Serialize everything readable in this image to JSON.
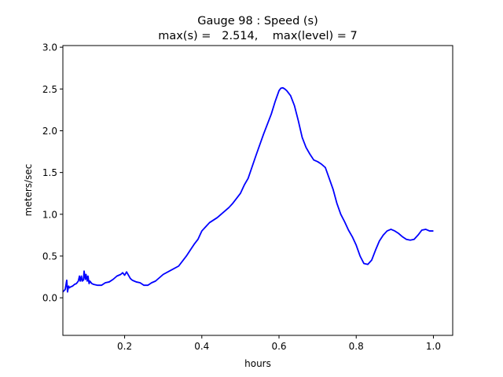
{
  "chart_data": {
    "type": "line",
    "title": "Gauge 98 : Speed (s)",
    "subtitle": "max(s) =   2.514,    max(level) = 7",
    "xlabel": "hours",
    "ylabel": "meters/sec",
    "xlim": [
      0.04,
      1.05
    ],
    "ylim": [
      -0.45,
      3.02
    ],
    "xticks": [
      0.2,
      0.4,
      0.6,
      0.8,
      1.0
    ],
    "xtick_labels": [
      "0.2",
      "0.4",
      "0.6",
      "0.8",
      "1.0"
    ],
    "yticks": [
      0.0,
      0.5,
      1.0,
      1.5,
      2.0,
      2.5,
      3.0
    ],
    "ytick_labels": [
      "0.0",
      "0.5",
      "1.0",
      "1.5",
      "2.0",
      "2.5",
      "3.0"
    ],
    "grid": false,
    "series": [
      {
        "color": "#0000ff",
        "x": [
          0.04,
          0.046,
          0.05,
          0.052,
          0.055,
          0.057,
          0.06,
          0.065,
          0.07,
          0.075,
          0.08,
          0.083,
          0.085,
          0.088,
          0.09,
          0.093,
          0.095,
          0.098,
          0.1,
          0.103,
          0.105,
          0.108,
          0.11,
          0.115,
          0.12,
          0.13,
          0.14,
          0.15,
          0.16,
          0.17,
          0.18,
          0.19,
          0.195,
          0.2,
          0.205,
          0.21,
          0.215,
          0.22,
          0.225,
          0.23,
          0.24,
          0.25,
          0.26,
          0.27,
          0.28,
          0.29,
          0.3,
          0.32,
          0.34,
          0.36,
          0.37,
          0.38,
          0.39,
          0.4,
          0.41,
          0.42,
          0.44,
          0.46,
          0.47,
          0.48,
          0.5,
          0.51,
          0.52,
          0.54,
          0.56,
          0.58,
          0.59,
          0.6,
          0.605,
          0.61,
          0.615,
          0.62,
          0.63,
          0.64,
          0.65,
          0.66,
          0.67,
          0.68,
          0.69,
          0.7,
          0.71,
          0.72,
          0.73,
          0.74,
          0.75,
          0.76,
          0.77,
          0.78,
          0.79,
          0.8,
          0.81,
          0.82,
          0.83,
          0.84,
          0.85,
          0.86,
          0.87,
          0.88,
          0.89,
          0.9,
          0.91,
          0.92,
          0.93,
          0.94,
          0.95,
          0.96,
          0.97,
          0.98,
          0.99,
          1.0
        ],
        "y": [
          0.07,
          0.1,
          0.21,
          0.07,
          0.14,
          0.12,
          0.13,
          0.14,
          0.16,
          0.17,
          0.2,
          0.26,
          0.2,
          0.26,
          0.2,
          0.21,
          0.32,
          0.22,
          0.28,
          0.2,
          0.26,
          0.17,
          0.2,
          0.17,
          0.16,
          0.15,
          0.15,
          0.18,
          0.19,
          0.22,
          0.26,
          0.28,
          0.3,
          0.27,
          0.31,
          0.27,
          0.23,
          0.21,
          0.2,
          0.19,
          0.18,
          0.15,
          0.15,
          0.18,
          0.2,
          0.24,
          0.28,
          0.33,
          0.38,
          0.5,
          0.57,
          0.64,
          0.7,
          0.8,
          0.85,
          0.9,
          0.96,
          1.04,
          1.08,
          1.13,
          1.25,
          1.35,
          1.43,
          1.7,
          1.96,
          2.2,
          2.35,
          2.48,
          2.51,
          2.514,
          2.5,
          2.48,
          2.42,
          2.3,
          2.12,
          1.92,
          1.8,
          1.72,
          1.65,
          1.63,
          1.6,
          1.56,
          1.43,
          1.3,
          1.13,
          1.0,
          0.91,
          0.81,
          0.73,
          0.63,
          0.5,
          0.41,
          0.4,
          0.45,
          0.57,
          0.68,
          0.75,
          0.8,
          0.82,
          0.8,
          0.77,
          0.73,
          0.7,
          0.69,
          0.7,
          0.75,
          0.81,
          0.82,
          0.8,
          0.8
        ]
      }
    ]
  }
}
